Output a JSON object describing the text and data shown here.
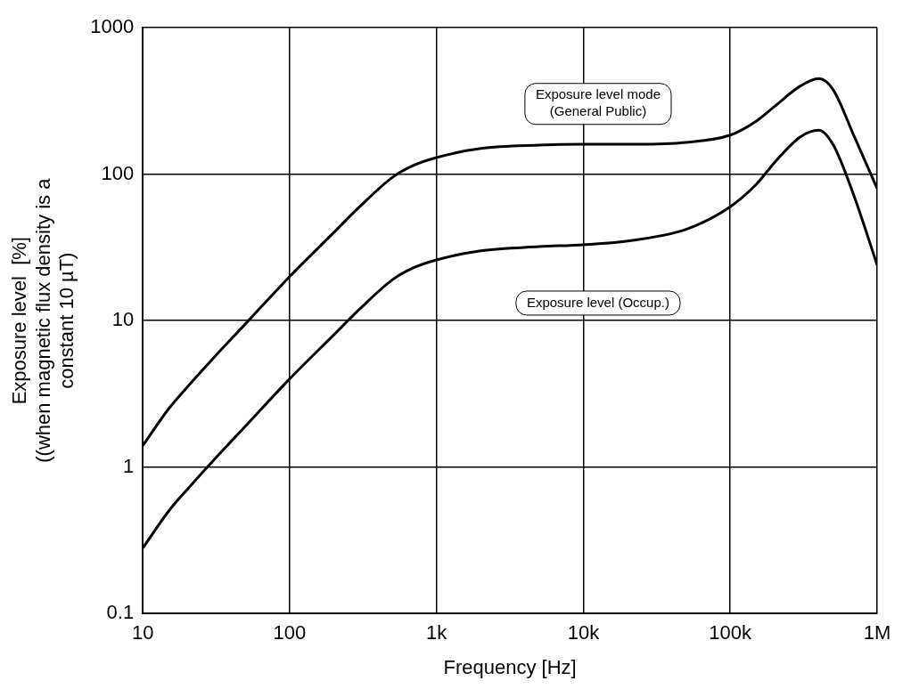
{
  "chart_data": {
    "type": "line",
    "xlabel": "Frequency [Hz]",
    "ylabel": "Exposure level  [%]\n((when magnetic flux density is a\nconstant 10 µT)",
    "log": "xy",
    "grid": true,
    "legend": false,
    "marker": "none",
    "line_style": "solid",
    "xlim": [
      10,
      1000000
    ],
    "ylim": [
      0.1,
      1000
    ],
    "xticks": [
      10,
      100,
      {
        "value": 1000,
        "label": "1k"
      },
      {
        "value": 10000,
        "label": "10k"
      },
      {
        "value": 100000,
        "label": "100k"
      },
      {
        "value": 1000000,
        "label": "1M"
      }
    ],
    "yticks": [
      0.1,
      1,
      10,
      100,
      1000
    ],
    "x": [
      10,
      15,
      20,
      30,
      50,
      100,
      200,
      300,
      500,
      700,
      1000,
      2000,
      5000,
      10000,
      20000,
      50000,
      100000,
      150000,
      200000,
      300000,
      400000,
      500000,
      700000,
      1000000
    ],
    "series": [
      {
        "name": "Exposure level mode\n(General Public)",
        "color": "#000000",
        "values": [
          1.4,
          2.5,
          3.5,
          5.5,
          9.5,
          20,
          40,
          60,
          95,
          115,
          130,
          150,
          158,
          160,
          160,
          165,
          185,
          230,
          290,
          400,
          450,
          380,
          180,
          80
        ]
      },
      {
        "name": "Exposure level (Occup.)",
        "color": "#000000",
        "values": [
          0.28,
          0.5,
          0.7,
          1.1,
          1.9,
          4,
          8,
          12,
          19,
          23,
          26,
          30,
          32,
          33,
          35,
          42,
          60,
          85,
          120,
          180,
          200,
          160,
          70,
          24
        ]
      }
    ]
  }
}
